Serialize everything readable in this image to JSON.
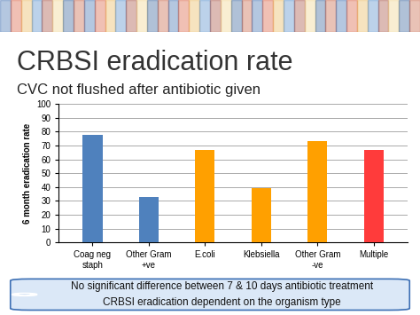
{
  "chart_data": {
    "type": "bar",
    "title": "CRBSI eradication rate",
    "subtitle": "CVC not flushed after antibiotic given",
    "y_label": "6 month eradication rate",
    "categories": [
      "Coag neg staph",
      "Other Gram +ve",
      "E.coli",
      "Klebsiella",
      "Other Gram -ve",
      "Multiple"
    ],
    "values": [
      78,
      33,
      67,
      39,
      73,
      67
    ],
    "colors": [
      "#4f81bd",
      "#4f81bd",
      "#ffa000",
      "#ffa000",
      "#ffa000",
      "#ff3b3b"
    ],
    "ylim": [
      0,
      100
    ],
    "yticks": [
      0,
      10,
      20,
      30,
      40,
      50,
      60,
      70,
      80,
      90,
      100
    ],
    "grid": true,
    "annotations": [
      "No significant difference between 7 & 10 days antibiotic treatment",
      "CRBSI eradication dependent on the organism type"
    ]
  }
}
